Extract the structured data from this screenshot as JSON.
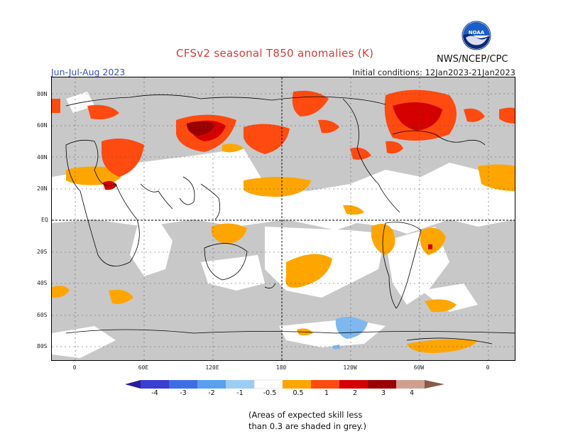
{
  "title": "CFSv2 seasonal T850 anomalies (K)",
  "season": "Jun-Jul-Aug 2023",
  "initial_conditions": "Initial conditions: 12Jan2023-21Jan2023",
  "agency": "NWS/NCEP/CPC",
  "logo_text": "NOAA",
  "lat_labels": [
    "80N",
    "60N",
    "40N",
    "20N",
    "EQ",
    "20S",
    "40S",
    "60S",
    "80S"
  ],
  "lon_labels": [
    "0",
    "60E",
    "120E",
    "180",
    "120W",
    "60W",
    "0"
  ],
  "colorbar": {
    "labels": [
      "-4",
      "-3",
      "-2",
      "-1",
      "-0.5",
      "0.5",
      "1",
      "2",
      "3",
      "4"
    ],
    "colors": [
      "#2a1a9e",
      "#3a3fd0",
      "#3d6ee6",
      "#5aa0f0",
      "#9ccdf5",
      "#ffffff",
      "#ffa500",
      "#ff4a10",
      "#d40000",
      "#9a0000",
      "#cfa08f",
      "#8a5a4a"
    ]
  },
  "note_lines": [
    "(Areas of expected skill less",
    "than 0.3 are shaded in grey.)"
  ],
  "colors": {
    "skill_grey": "#c8c8c8",
    "anom_05_1": "#ffa500",
    "anom_1_2": "#ff4a10",
    "anom_2_3": "#d40000",
    "anom_3_4": "#9a0000",
    "anom_neg_1_05": "#7fb8f0"
  }
}
